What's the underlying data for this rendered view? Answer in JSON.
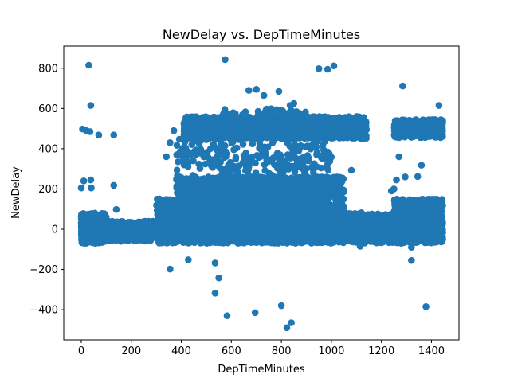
{
  "chart_data": {
    "type": "scatter",
    "title": "NewDelay vs. DepTimeMinutes",
    "xlabel": "DepTimeMinutes",
    "ylabel": "NewDelay",
    "xlim": [
      -70,
      1510
    ],
    "ylim": [
      -550,
      910
    ],
    "xticks": [
      0,
      200,
      400,
      600,
      800,
      1000,
      1200,
      1400
    ],
    "xtick_labels": [
      "0",
      "200",
      "400",
      "600",
      "800",
      "1000",
      "1200",
      "1400"
    ],
    "yticks": [
      -400,
      -200,
      0,
      200,
      400,
      600,
      800
    ],
    "ytick_labels": [
      "−400",
      "−200",
      "0",
      "200",
      "400",
      "600",
      "800"
    ],
    "grid": false,
    "series_color": "#1f77b4",
    "outlier_points": [
      {
        "x": 30,
        "y": 815
      },
      {
        "x": 38,
        "y": 615
      },
      {
        "x": 575,
        "y": 843
      },
      {
        "x": 950,
        "y": 798
      },
      {
        "x": 985,
        "y": 795
      },
      {
        "x": 1010,
        "y": 812
      },
      {
        "x": 1285,
        "y": 712
      },
      {
        "x": 5,
        "y": 498
      },
      {
        "x": 20,
        "y": 490
      },
      {
        "x": 35,
        "y": 485
      },
      {
        "x": 70,
        "y": 468
      },
      {
        "x": 130,
        "y": 468
      },
      {
        "x": 130,
        "y": 218
      },
      {
        "x": 10,
        "y": 240
      },
      {
        "x": 38,
        "y": 245
      },
      {
        "x": 0,
        "y": 205
      },
      {
        "x": 40,
        "y": 205
      },
      {
        "x": 140,
        "y": 98
      },
      {
        "x": 1080,
        "y": 293
      },
      {
        "x": 1120,
        "y": 82
      },
      {
        "x": 355,
        "y": -198
      },
      {
        "x": 428,
        "y": -152
      },
      {
        "x": 535,
        "y": -168
      },
      {
        "x": 550,
        "y": -242
      },
      {
        "x": 535,
        "y": -318
      },
      {
        "x": 583,
        "y": -430
      },
      {
        "x": 695,
        "y": -415
      },
      {
        "x": 800,
        "y": -380
      },
      {
        "x": 822,
        "y": -490
      },
      {
        "x": 840,
        "y": -465
      },
      {
        "x": 1320,
        "y": -155
      },
      {
        "x": 1378,
        "y": -385
      },
      {
        "x": 1320,
        "y": -90
      },
      {
        "x": 1115,
        "y": -85
      },
      {
        "x": 355,
        "y": 430
      },
      {
        "x": 370,
        "y": 490
      },
      {
        "x": 340,
        "y": 360
      },
      {
        "x": 670,
        "y": 690
      },
      {
        "x": 700,
        "y": 695
      },
      {
        "x": 730,
        "y": 665
      },
      {
        "x": 790,
        "y": 685
      },
      {
        "x": 835,
        "y": 615
      },
      {
        "x": 850,
        "y": 625
      },
      {
        "x": 1430,
        "y": 615
      },
      {
        "x": 1270,
        "y": 360
      },
      {
        "x": 1260,
        "y": 245
      },
      {
        "x": 1295,
        "y": 260
      },
      {
        "x": 1345,
        "y": 262
      },
      {
        "x": 1360,
        "y": 318
      },
      {
        "x": 1240,
        "y": 190
      },
      {
        "x": 1250,
        "y": 200
      }
    ],
    "density_regions": [
      {
        "x0": 0,
        "x1": 100,
        "ymin": -70,
        "ymax": 80,
        "ycore": 0,
        "n": 900
      },
      {
        "x0": 100,
        "x1": 300,
        "ymin": -60,
        "ymax": 40,
        "ycore": 0,
        "n": 700
      },
      {
        "x0": 300,
        "x1": 380,
        "ymin": -70,
        "ymax": 150,
        "ycore": 0,
        "n": 500
      },
      {
        "x0": 380,
        "x1": 1050,
        "ymin": -70,
        "ymax": 260,
        "ycore": 10,
        "n": 6000
      },
      {
        "x0": 1050,
        "x1": 1250,
        "ymin": -70,
        "ymax": 80,
        "ycore": 0,
        "n": 900
      },
      {
        "x0": 1250,
        "x1": 1445,
        "ymin": -70,
        "ymax": 150,
        "ycore": 0,
        "n": 1600
      },
      {
        "x0": 410,
        "x1": 1140,
        "ymin": 450,
        "ymax": 560,
        "ycore": 495,
        "n": 2600
      },
      {
        "x0": 1250,
        "x1": 1445,
        "ymin": 455,
        "ymax": 545,
        "ycore": 495,
        "n": 600
      },
      {
        "x0": 380,
        "x1": 1000,
        "ymin": 260,
        "ymax": 450,
        "ycore": 350,
        "n": 260
      },
      {
        "x0": 550,
        "x1": 900,
        "ymin": 560,
        "ymax": 600,
        "ycore": 575,
        "n": 40
      }
    ]
  }
}
